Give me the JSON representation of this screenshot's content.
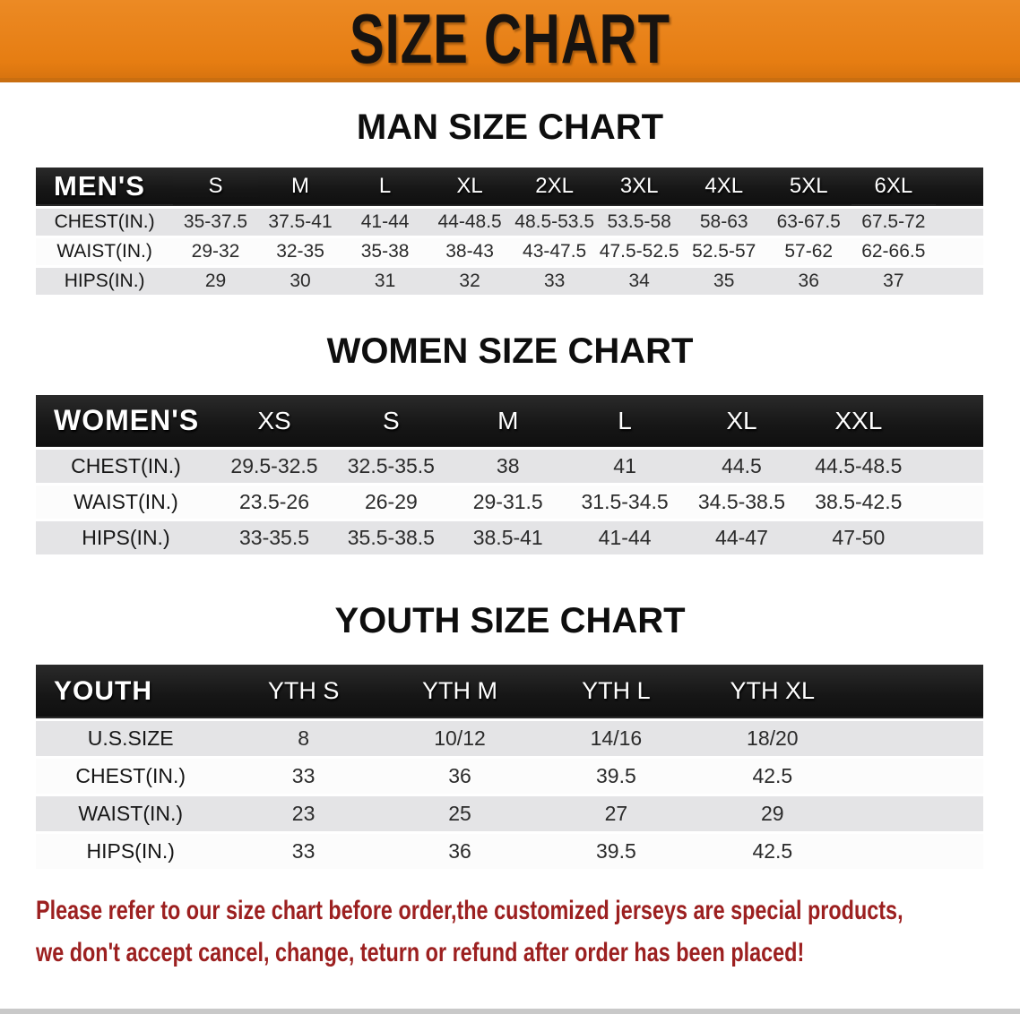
{
  "banner": {
    "title": "SIZE CHART",
    "background": "#E8811B",
    "text_color": "#171310"
  },
  "sections": [
    {
      "id": "men",
      "title": "MAN SIZE CHART",
      "corner_label": "MEN'S",
      "columns": [
        "S",
        "M",
        "L",
        "XL",
        "2XL",
        "3XL",
        "4XL",
        "5XL",
        "6XL"
      ],
      "rows": [
        {
          "label": "CHEST(IN.)",
          "values": [
            "35-37.5",
            "37.5-41",
            "41-44",
            "44-48.5",
            "48.5-53.5",
            "53.5-58",
            "58-63",
            "63-67.5",
            "67.5-72"
          ]
        },
        {
          "label": "WAIST(IN.)",
          "values": [
            "29-32",
            "32-35",
            "35-38",
            "38-43",
            "43-47.5",
            "47.5-52.5",
            "52.5-57",
            "57-62",
            "62-66.5"
          ]
        },
        {
          "label": "HIPS(IN.)",
          "values": [
            "29",
            "30",
            "31",
            "32",
            "33",
            "34",
            "35",
            "36",
            "37"
          ]
        }
      ]
    },
    {
      "id": "women",
      "title": "WOMEN SIZE CHART",
      "corner_label": "WOMEN'S",
      "columns": [
        "XS",
        "S",
        "M",
        "L",
        "XL",
        "XXL"
      ],
      "rows": [
        {
          "label": "CHEST(IN.)",
          "values": [
            "29.5-32.5",
            "32.5-35.5",
            "38",
            "41",
            "44.5",
            "44.5-48.5"
          ]
        },
        {
          "label": "WAIST(IN.)",
          "values": [
            "23.5-26",
            "26-29",
            "29-31.5",
            "31.5-34.5",
            "34.5-38.5",
            "38.5-42.5"
          ]
        },
        {
          "label": "HIPS(IN.)",
          "values": [
            "33-35.5",
            "35.5-38.5",
            "38.5-41",
            "41-44",
            "44-47",
            "47-50"
          ]
        }
      ]
    },
    {
      "id": "youth",
      "title": "YOUTH SIZE CHART",
      "corner_label": "YOUTH",
      "columns": [
        "YTH S",
        "YTH M",
        "YTH L",
        "YTH XL"
      ],
      "rows": [
        {
          "label": "U.S.SIZE",
          "values": [
            "8",
            "10/12",
            "14/16",
            "18/20"
          ]
        },
        {
          "label": "CHEST(IN.)",
          "values": [
            "33",
            "36",
            "39.5",
            "42.5"
          ]
        },
        {
          "label": "WAIST(IN.)",
          "values": [
            "23",
            "25",
            "27",
            "29"
          ]
        },
        {
          "label": "HIPS(IN.)",
          "values": [
            "33",
            "36",
            "39.5",
            "42.5"
          ]
        }
      ]
    }
  ],
  "footer": {
    "line1": "Please refer to our size chart before order,the customized jerseys are special products,",
    "line2": "we don't accept cancel, change, teturn or refund after order has been placed!",
    "text_color": "#9C2020"
  },
  "colors": {
    "header_bar": "#1B1B1B",
    "row_stripe": "#E4E4E6",
    "bottom_bar": "#C9C9C9"
  }
}
